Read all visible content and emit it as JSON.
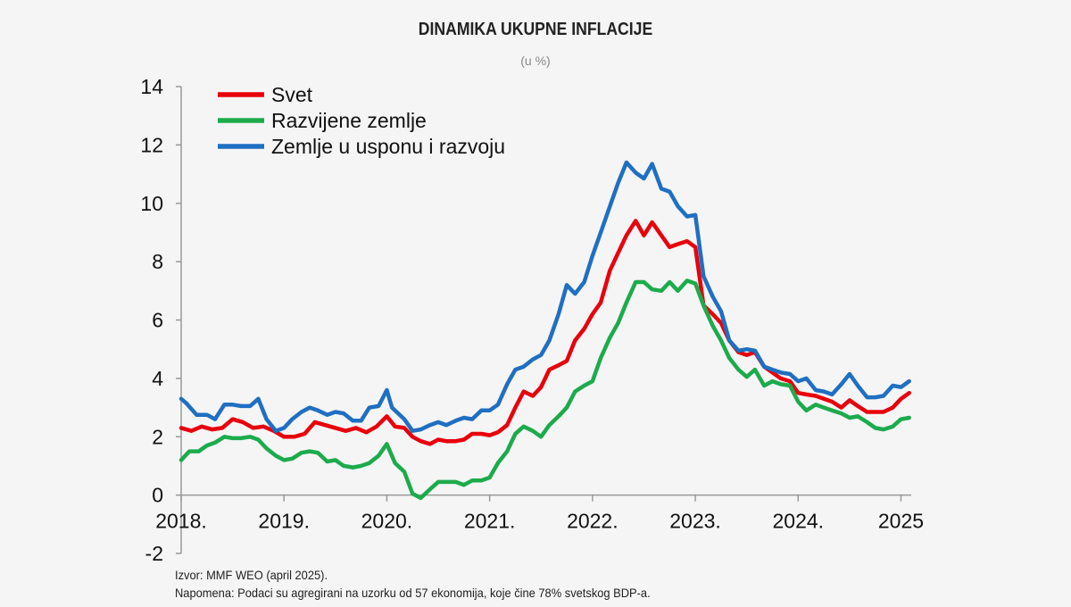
{
  "title": "DINAMIKA UKUPNE INFLACIJE",
  "subtitle": "(u %)",
  "footer": {
    "source": "Izvor: MMF WEO (april 2025).",
    "note": "Napomena: Podaci su agregirani na uzorku od 57 ekonomija, koje čine 78% svetskog BDP-a."
  },
  "chart_data": {
    "type": "line",
    "title": "DINAMIKA UKUPNE INFLACIJE",
    "subtitle": "(u %)",
    "ylim": [
      -2,
      14
    ],
    "yticks": [
      -2,
      0,
      2,
      4,
      6,
      8,
      10,
      12,
      14
    ],
    "xlim": [
      2018.0,
      2025.1
    ],
    "xticks": [
      {
        "value": 2018,
        "label": "2018."
      },
      {
        "value": 2019,
        "label": "2019."
      },
      {
        "value": 2020,
        "label": "2020."
      },
      {
        "value": 2021,
        "label": "2021."
      },
      {
        "value": 2022,
        "label": "2022."
      },
      {
        "value": 2023,
        "label": "2023."
      },
      {
        "value": 2024,
        "label": "2024."
      },
      {
        "value": 2025,
        "label": "2025"
      }
    ],
    "legend_position": "top-left",
    "grid": false,
    "series": [
      {
        "name": "Svet",
        "color": "#e8000b",
        "points": [
          [
            2018.0,
            2.3
          ],
          [
            2018.1,
            2.2
          ],
          [
            2018.2,
            2.35
          ],
          [
            2018.3,
            2.25
          ],
          [
            2018.4,
            2.3
          ],
          [
            2018.5,
            2.6
          ],
          [
            2018.6,
            2.5
          ],
          [
            2018.7,
            2.3
          ],
          [
            2018.8,
            2.35
          ],
          [
            2018.9,
            2.2
          ],
          [
            2019.0,
            2.0
          ],
          [
            2019.1,
            2.0
          ],
          [
            2019.2,
            2.1
          ],
          [
            2019.3,
            2.5
          ],
          [
            2019.4,
            2.4
          ],
          [
            2019.5,
            2.3
          ],
          [
            2019.6,
            2.2
          ],
          [
            2019.7,
            2.3
          ],
          [
            2019.8,
            2.15
          ],
          [
            2019.9,
            2.35
          ],
          [
            2020.0,
            2.7
          ],
          [
            2020.08,
            2.35
          ],
          [
            2020.17,
            2.3
          ],
          [
            2020.25,
            2.0
          ],
          [
            2020.33,
            1.85
          ],
          [
            2020.42,
            1.75
          ],
          [
            2020.5,
            1.9
          ],
          [
            2020.58,
            1.85
          ],
          [
            2020.67,
            1.85
          ],
          [
            2020.75,
            1.9
          ],
          [
            2020.83,
            2.1
          ],
          [
            2020.92,
            2.1
          ],
          [
            2021.0,
            2.05
          ],
          [
            2021.08,
            2.15
          ],
          [
            2021.17,
            2.4
          ],
          [
            2021.25,
            3.0
          ],
          [
            2021.33,
            3.55
          ],
          [
            2021.42,
            3.4
          ],
          [
            2021.5,
            3.7
          ],
          [
            2021.58,
            4.3
          ],
          [
            2021.67,
            4.45
          ],
          [
            2021.75,
            4.6
          ],
          [
            2021.83,
            5.3
          ],
          [
            2021.92,
            5.7
          ],
          [
            2022.0,
            6.2
          ],
          [
            2022.08,
            6.6
          ],
          [
            2022.17,
            7.7
          ],
          [
            2022.25,
            8.3
          ],
          [
            2022.33,
            8.9
          ],
          [
            2022.42,
            9.4
          ],
          [
            2022.5,
            8.9
          ],
          [
            2022.58,
            9.35
          ],
          [
            2022.67,
            8.9
          ],
          [
            2022.75,
            8.5
          ],
          [
            2022.83,
            8.6
          ],
          [
            2022.92,
            8.7
          ],
          [
            2023.0,
            8.5
          ],
          [
            2023.08,
            6.5
          ],
          [
            2023.17,
            6.2
          ],
          [
            2023.25,
            5.9
          ],
          [
            2023.33,
            5.3
          ],
          [
            2023.42,
            4.9
          ],
          [
            2023.5,
            4.8
          ],
          [
            2023.58,
            4.9
          ],
          [
            2023.67,
            4.4
          ],
          [
            2023.75,
            4.2
          ],
          [
            2023.83,
            4.0
          ],
          [
            2023.92,
            3.9
          ],
          [
            2024.0,
            3.5
          ],
          [
            2024.08,
            3.45
          ],
          [
            2024.17,
            3.4
          ],
          [
            2024.25,
            3.3
          ],
          [
            2024.33,
            3.2
          ],
          [
            2024.42,
            3.0
          ],
          [
            2024.5,
            3.25
          ],
          [
            2024.58,
            3.05
          ],
          [
            2024.67,
            2.85
          ],
          [
            2024.75,
            2.85
          ],
          [
            2024.83,
            2.85
          ],
          [
            2024.92,
            3.0
          ],
          [
            2025.0,
            3.3
          ],
          [
            2025.08,
            3.5
          ]
        ]
      },
      {
        "name": "Razvijene zemlje",
        "color": "#1cab4c",
        "points": [
          [
            2018.0,
            1.2
          ],
          [
            2018.08,
            1.5
          ],
          [
            2018.17,
            1.5
          ],
          [
            2018.25,
            1.7
          ],
          [
            2018.33,
            1.8
          ],
          [
            2018.42,
            2.0
          ],
          [
            2018.5,
            1.95
          ],
          [
            2018.58,
            1.95
          ],
          [
            2018.67,
            2.0
          ],
          [
            2018.75,
            1.9
          ],
          [
            2018.83,
            1.6
          ],
          [
            2018.92,
            1.35
          ],
          [
            2019.0,
            1.2
          ],
          [
            2019.08,
            1.25
          ],
          [
            2019.17,
            1.45
          ],
          [
            2019.25,
            1.5
          ],
          [
            2019.33,
            1.45
          ],
          [
            2019.42,
            1.15
          ],
          [
            2019.5,
            1.2
          ],
          [
            2019.58,
            1.0
          ],
          [
            2019.67,
            0.95
          ],
          [
            2019.75,
            1.0
          ],
          [
            2019.83,
            1.1
          ],
          [
            2019.92,
            1.35
          ],
          [
            2020.0,
            1.75
          ],
          [
            2020.08,
            1.1
          ],
          [
            2020.17,
            0.8
          ],
          [
            2020.25,
            0.05
          ],
          [
            2020.33,
            -0.1
          ],
          [
            2020.42,
            0.2
          ],
          [
            2020.5,
            0.45
          ],
          [
            2020.58,
            0.45
          ],
          [
            2020.67,
            0.45
          ],
          [
            2020.75,
            0.35
          ],
          [
            2020.83,
            0.5
          ],
          [
            2020.92,
            0.5
          ],
          [
            2021.0,
            0.6
          ],
          [
            2021.08,
            1.1
          ],
          [
            2021.17,
            1.5
          ],
          [
            2021.25,
            2.1
          ],
          [
            2021.33,
            2.35
          ],
          [
            2021.42,
            2.2
          ],
          [
            2021.5,
            2.0
          ],
          [
            2021.58,
            2.4
          ],
          [
            2021.67,
            2.7
          ],
          [
            2021.75,
            3.0
          ],
          [
            2021.83,
            3.55
          ],
          [
            2021.92,
            3.75
          ],
          [
            2022.0,
            3.9
          ],
          [
            2022.08,
            4.7
          ],
          [
            2022.17,
            5.4
          ],
          [
            2022.25,
            5.9
          ],
          [
            2022.33,
            6.6
          ],
          [
            2022.42,
            7.3
          ],
          [
            2022.5,
            7.3
          ],
          [
            2022.58,
            7.05
          ],
          [
            2022.67,
            7.0
          ],
          [
            2022.75,
            7.3
          ],
          [
            2022.83,
            7.0
          ],
          [
            2022.92,
            7.35
          ],
          [
            2023.0,
            7.25
          ],
          [
            2023.08,
            6.5
          ],
          [
            2023.17,
            5.8
          ],
          [
            2023.25,
            5.3
          ],
          [
            2023.33,
            4.7
          ],
          [
            2023.42,
            4.3
          ],
          [
            2023.5,
            4.05
          ],
          [
            2023.58,
            4.3
          ],
          [
            2023.67,
            3.75
          ],
          [
            2023.75,
            3.9
          ],
          [
            2023.83,
            3.8
          ],
          [
            2023.92,
            3.75
          ],
          [
            2024.0,
            3.2
          ],
          [
            2024.08,
            2.9
          ],
          [
            2024.17,
            3.1
          ],
          [
            2024.25,
            3.0
          ],
          [
            2024.33,
            2.9
          ],
          [
            2024.42,
            2.8
          ],
          [
            2024.5,
            2.65
          ],
          [
            2024.58,
            2.7
          ],
          [
            2024.67,
            2.5
          ],
          [
            2024.75,
            2.3
          ],
          [
            2024.83,
            2.25
          ],
          [
            2024.92,
            2.35
          ],
          [
            2025.0,
            2.6
          ],
          [
            2025.08,
            2.65
          ]
        ]
      },
      {
        "name": "Zemlje u usponu i razvoju",
        "color": "#1f6fc2",
        "points": [
          [
            2018.0,
            3.3
          ],
          [
            2018.05,
            3.15
          ],
          [
            2018.15,
            2.75
          ],
          [
            2018.25,
            2.75
          ],
          [
            2018.33,
            2.6
          ],
          [
            2018.42,
            3.1
          ],
          [
            2018.5,
            3.1
          ],
          [
            2018.58,
            3.05
          ],
          [
            2018.67,
            3.05
          ],
          [
            2018.75,
            3.3
          ],
          [
            2018.83,
            2.6
          ],
          [
            2018.92,
            2.2
          ],
          [
            2019.0,
            2.3
          ],
          [
            2019.08,
            2.6
          ],
          [
            2019.17,
            2.85
          ],
          [
            2019.25,
            3.0
          ],
          [
            2019.33,
            2.9
          ],
          [
            2019.42,
            2.75
          ],
          [
            2019.5,
            2.85
          ],
          [
            2019.58,
            2.8
          ],
          [
            2019.67,
            2.55
          ],
          [
            2019.75,
            2.55
          ],
          [
            2019.83,
            3.0
          ],
          [
            2019.92,
            3.05
          ],
          [
            2020.0,
            3.6
          ],
          [
            2020.05,
            3.0
          ],
          [
            2020.17,
            2.6
          ],
          [
            2020.25,
            2.2
          ],
          [
            2020.33,
            2.25
          ],
          [
            2020.42,
            2.4
          ],
          [
            2020.5,
            2.5
          ],
          [
            2020.58,
            2.4
          ],
          [
            2020.67,
            2.55
          ],
          [
            2020.75,
            2.65
          ],
          [
            2020.83,
            2.6
          ],
          [
            2020.92,
            2.9
          ],
          [
            2021.0,
            2.9
          ],
          [
            2021.08,
            3.1
          ],
          [
            2021.17,
            3.8
          ],
          [
            2021.25,
            4.3
          ],
          [
            2021.33,
            4.4
          ],
          [
            2021.42,
            4.65
          ],
          [
            2021.5,
            4.8
          ],
          [
            2021.58,
            5.3
          ],
          [
            2021.67,
            6.2
          ],
          [
            2021.75,
            7.2
          ],
          [
            2021.83,
            6.9
          ],
          [
            2021.92,
            7.3
          ],
          [
            2022.0,
            8.2
          ],
          [
            2022.08,
            9.0
          ],
          [
            2022.17,
            9.9
          ],
          [
            2022.25,
            10.7
          ],
          [
            2022.33,
            11.4
          ],
          [
            2022.42,
            11.05
          ],
          [
            2022.5,
            10.85
          ],
          [
            2022.58,
            11.35
          ],
          [
            2022.67,
            10.5
          ],
          [
            2022.75,
            10.4
          ],
          [
            2022.83,
            9.9
          ],
          [
            2022.92,
            9.55
          ],
          [
            2023.0,
            9.6
          ],
          [
            2023.08,
            7.5
          ],
          [
            2023.17,
            6.8
          ],
          [
            2023.25,
            6.3
          ],
          [
            2023.33,
            5.3
          ],
          [
            2023.42,
            4.95
          ],
          [
            2023.5,
            5.0
          ],
          [
            2023.58,
            4.95
          ],
          [
            2023.67,
            4.4
          ],
          [
            2023.75,
            4.3
          ],
          [
            2023.83,
            4.2
          ],
          [
            2023.92,
            4.15
          ],
          [
            2024.0,
            3.9
          ],
          [
            2024.08,
            4.0
          ],
          [
            2024.17,
            3.6
          ],
          [
            2024.25,
            3.55
          ],
          [
            2024.33,
            3.45
          ],
          [
            2024.42,
            3.8
          ],
          [
            2024.5,
            4.15
          ],
          [
            2024.58,
            3.75
          ],
          [
            2024.67,
            3.35
          ],
          [
            2024.75,
            3.35
          ],
          [
            2024.83,
            3.4
          ],
          [
            2024.92,
            3.75
          ],
          [
            2025.0,
            3.7
          ],
          [
            2025.08,
            3.9
          ]
        ]
      }
    ]
  }
}
